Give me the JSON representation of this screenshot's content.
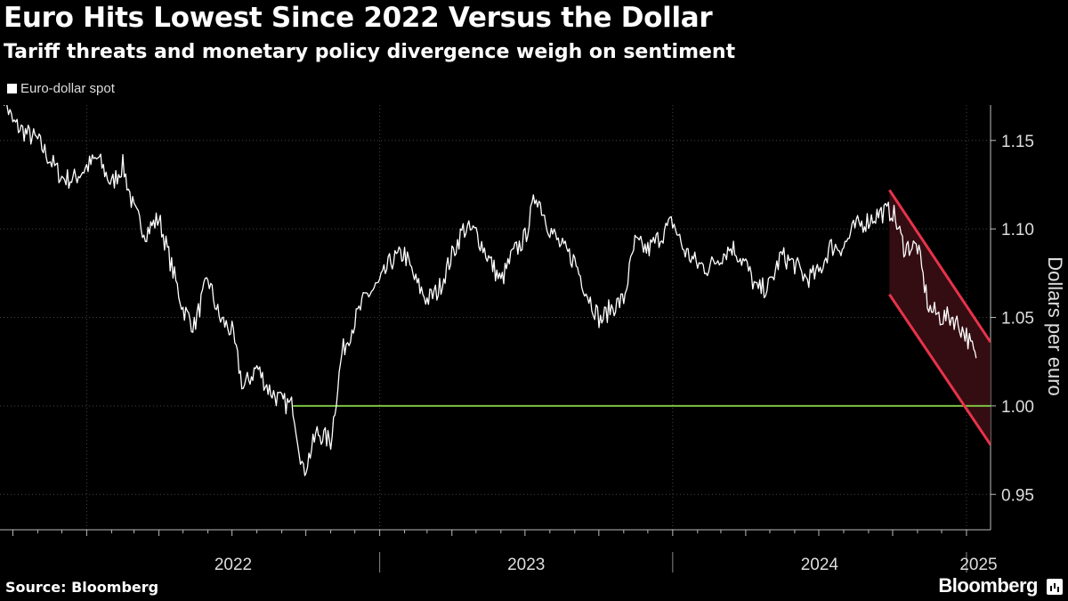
{
  "header": {
    "title": "Euro Hits Lowest Since 2022 Versus the Dollar",
    "subtitle": "Tariff threats and monetary policy divergence weigh on sentiment"
  },
  "footer": {
    "source": "Source: Bloomberg",
    "brand": "Bloomberg"
  },
  "colors": {
    "background": "#000000",
    "series": "#ffffff",
    "parity_line": "#7dc242",
    "channel_line": "#e8334a",
    "channel_fill": "#3a0e14",
    "grid": "#444444"
  },
  "chart_data": {
    "type": "line",
    "legend": [
      "Euro-dollar spot"
    ],
    "legend_placement": "top-left",
    "ylabel": "Dollars per euro",
    "ylim": [
      0.93,
      1.17
    ],
    "yticks": [
      0.95,
      1.0,
      1.05,
      1.1,
      1.15
    ],
    "ytick_labels": [
      "0.95",
      "1.00",
      "1.05",
      "1.10",
      "1.15"
    ],
    "xlim": [
      "2021-09-15",
      "2025-01-31"
    ],
    "xtick_labels": [
      "2022",
      "2023",
      "2024",
      "2025"
    ],
    "grid": "vertical",
    "series": [
      {
        "name": "Euro-dollar spot",
        "x": [
          "2021-09-15",
          "2021-10-01",
          "2021-10-15",
          "2021-11-01",
          "2021-11-15",
          "2021-12-01",
          "2021-12-15",
          "2022-01-01",
          "2022-01-15",
          "2022-02-01",
          "2022-02-15",
          "2022-03-01",
          "2022-03-15",
          "2022-04-01",
          "2022-04-15",
          "2022-05-01",
          "2022-05-15",
          "2022-06-01",
          "2022-06-15",
          "2022-07-01",
          "2022-07-15",
          "2022-08-01",
          "2022-08-15",
          "2022-09-01",
          "2022-09-15",
          "2022-09-28",
          "2022-10-15",
          "2022-11-01",
          "2022-11-15",
          "2022-12-01",
          "2022-12-15",
          "2023-01-01",
          "2023-01-15",
          "2023-02-01",
          "2023-02-15",
          "2023-03-01",
          "2023-03-15",
          "2023-04-01",
          "2023-04-15",
          "2023-05-01",
          "2023-05-15",
          "2023-06-01",
          "2023-06-15",
          "2023-07-01",
          "2023-07-15",
          "2023-08-01",
          "2023-08-15",
          "2023-09-01",
          "2023-09-15",
          "2023-10-03",
          "2023-10-15",
          "2023-11-01",
          "2023-11-15",
          "2023-12-01",
          "2023-12-15",
          "2024-01-01",
          "2024-01-15",
          "2024-02-01",
          "2024-02-15",
          "2024-03-01",
          "2024-03-15",
          "2024-04-01",
          "2024-04-15",
          "2024-05-01",
          "2024-05-15",
          "2024-06-01",
          "2024-06-15",
          "2024-07-01",
          "2024-07-15",
          "2024-08-01",
          "2024-08-15",
          "2024-09-01",
          "2024-09-15",
          "2024-10-01",
          "2024-10-15",
          "2024-11-01",
          "2024-11-15",
          "2024-12-01",
          "2024-12-15",
          "2025-01-01",
          "2025-01-10",
          "2025-01-13"
        ],
        "values": [
          1.18,
          1.16,
          1.155,
          1.15,
          1.14,
          1.129,
          1.128,
          1.135,
          1.14,
          1.125,
          1.136,
          1.11,
          1.098,
          1.106,
          1.082,
          1.055,
          1.045,
          1.072,
          1.05,
          1.042,
          1.01,
          1.022,
          1.01,
          1.002,
          1.0,
          0.962,
          0.985,
          0.98,
          1.03,
          1.048,
          1.062,
          1.069,
          1.082,
          1.086,
          1.07,
          1.06,
          1.065,
          1.085,
          1.1,
          1.098,
          1.085,
          1.07,
          1.085,
          1.095,
          1.12,
          1.1,
          1.09,
          1.082,
          1.065,
          1.048,
          1.055,
          1.06,
          1.092,
          1.088,
          1.095,
          1.104,
          1.088,
          1.08,
          1.078,
          1.085,
          1.09,
          1.08,
          1.065,
          1.068,
          1.085,
          1.08,
          1.072,
          1.075,
          1.09,
          1.09,
          1.101,
          1.105,
          1.109,
          1.11,
          1.09,
          1.09,
          1.055,
          1.05,
          1.05,
          1.04,
          1.03,
          1.027
        ]
      }
    ],
    "annotations": {
      "parity_line": {
        "y": 1.0,
        "x_start": "2022-09-15",
        "x_end": "2025-01-31"
      },
      "channel": {
        "upper": {
          "start": [
            "2024-09-27",
            1.122
          ],
          "end": [
            "2025-01-31",
            1.036
          ]
        },
        "lower": {
          "start": [
            "2024-09-27",
            1.063
          ],
          "end": [
            "2025-01-31",
            0.978
          ]
        }
      }
    }
  }
}
